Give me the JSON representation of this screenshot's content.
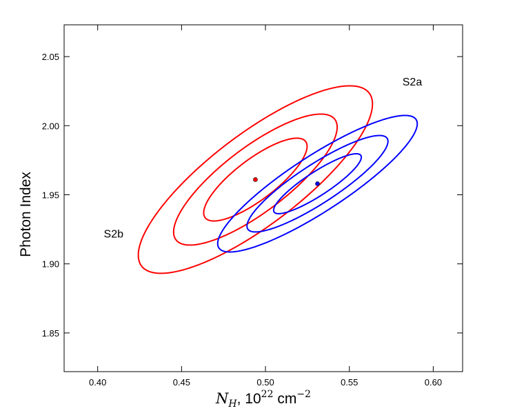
{
  "chart_data": {
    "type": "scatter",
    "title": "",
    "xlabel": {
      "symbol": "N",
      "subscript": "H",
      "rest": ", 10",
      "exponent": "22",
      "unit": " cm",
      "unit_exponent": "−2"
    },
    "ylabel": "Photon Index",
    "xlim": [
      0.38,
      0.6175
    ],
    "ylim": [
      1.822,
      2.073
    ],
    "xticks": [
      0.4,
      0.45,
      0.5,
      0.55,
      0.6
    ],
    "xtick_labels": [
      "0.40",
      "0.45",
      "0.50",
      "0.55",
      "0.60"
    ],
    "yticks": [
      1.85,
      1.9,
      1.95,
      2.0,
      2.05
    ],
    "ytick_labels": [
      "1.85",
      "1.90",
      "1.95",
      "2.00",
      "2.05"
    ],
    "grid": false,
    "series": [
      {
        "name": "S2b",
        "color": "#ff0000",
        "best_fit": {
          "x": 0.494,
          "y": 1.961
        },
        "contours": [
          {
            "semi_major": 0.0408,
            "semi_minor": 0.0135,
            "angle_deg": 44
          },
          {
            "semi_major": 0.0645,
            "semi_minor": 0.0215,
            "angle_deg": 44
          },
          {
            "semi_major": 0.0925,
            "semi_minor": 0.0303,
            "angle_deg": 44
          }
        ]
      },
      {
        "name": "S2a",
        "color": "#0000ff",
        "best_fit": {
          "x": 0.531,
          "y": 1.958
        },
        "contours": [
          {
            "semi_major": 0.033,
            "semi_minor": 0.008,
            "angle_deg": 39
          },
          {
            "semi_major": 0.053,
            "semi_minor": 0.0132,
            "angle_deg": 39
          },
          {
            "semi_major": 0.075,
            "semi_minor": 0.0188,
            "angle_deg": 39
          }
        ]
      }
    ],
    "annotations": [
      {
        "text": "S2a",
        "x": 0.5875,
        "y": 2.032
      },
      {
        "text": "S2b",
        "x": 0.4095,
        "y": 1.922
      }
    ]
  }
}
